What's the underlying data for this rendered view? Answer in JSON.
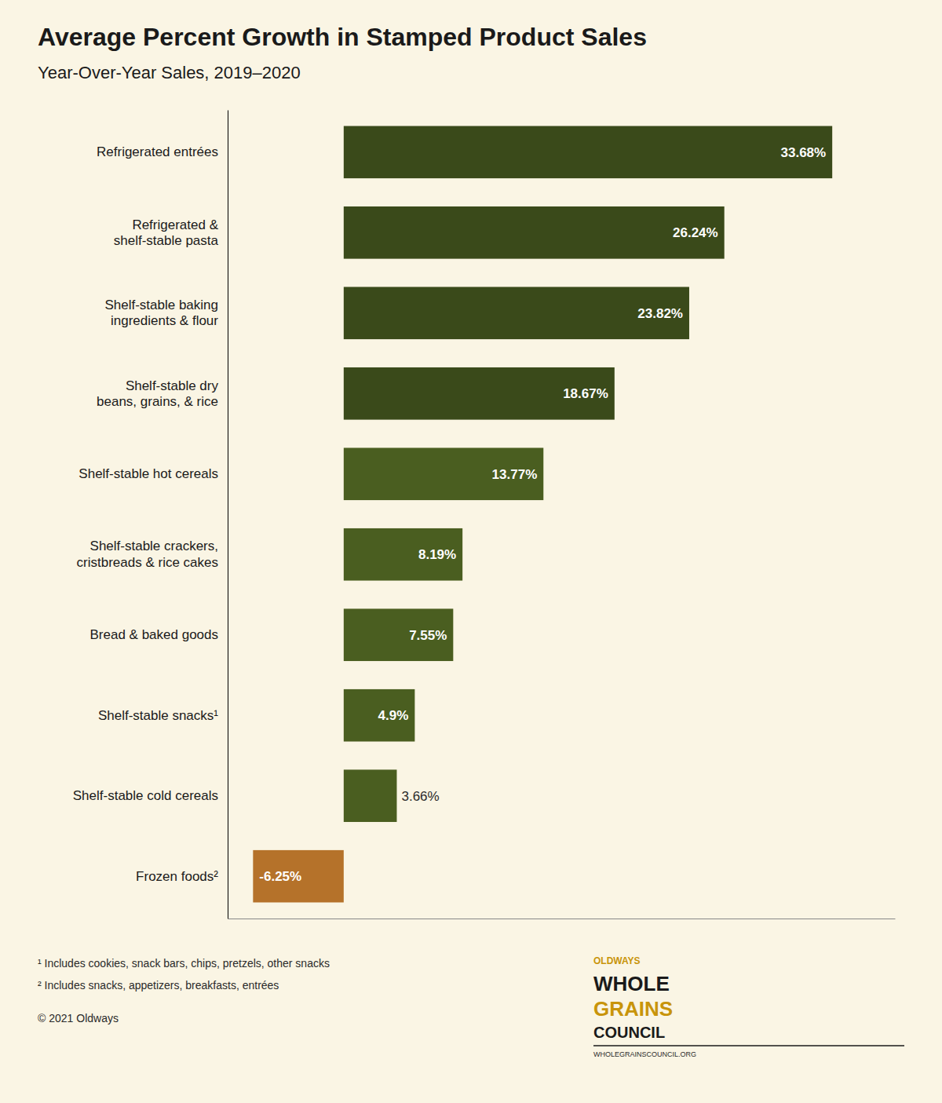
{
  "chart_data": {
    "type": "bar",
    "orientation": "horizontal",
    "title": "Average Percent Growth in Stamped Product Sales",
    "subtitle": "Year-Over-Year Sales, 2019–2020",
    "categories": [
      "Refrigerated entrées",
      "Refrigerated &\nshelf-stable pasta",
      "Shelf-stable baking\ningredients & flour",
      "Shelf-stable dry\nbeans, grains, & rice",
      "Shelf-stable hot cereals",
      "Shelf-stable crackers,\ncristbreads & rice cakes",
      "Bread & baked goods",
      "Shelf-stable snacks¹",
      "Shelf-stable cold cereals",
      "Frozen foods²"
    ],
    "values": [
      33.68,
      26.24,
      23.82,
      18.67,
      13.77,
      8.19,
      7.55,
      4.9,
      3.66,
      -6.25
    ],
    "value_labels": [
      "33.68%",
      "26.24%",
      "23.82%",
      "18.67%",
      "13.77%",
      "8.19%",
      "7.55%",
      "4.9%",
      "3.66%",
      "-6.25%"
    ],
    "colors": [
      "#3a4a1a",
      "#3a4a1a",
      "#3a4a1a",
      "#3a4a1a",
      "#4a5e20",
      "#4a5e20",
      "#4a5e20",
      "#4a5e20",
      "#4a5e20",
      "#b5722a"
    ],
    "xlim": [
      -8,
      38
    ],
    "data_labels": true,
    "tick_labels": "y",
    "footnotes": [
      "¹ Includes cookies, snack bars, chips, pretzels, other snacks",
      "² Includes snacks, appetizers, breakfasts, entrées",
      "© 2021 Oldways"
    ],
    "logo_text": [
      "OLDWAYS",
      "WHOLE",
      "GRAINS",
      "COUNCIL",
      "WHOLEGRAINSCOUNCIL.ORG"
    ]
  }
}
